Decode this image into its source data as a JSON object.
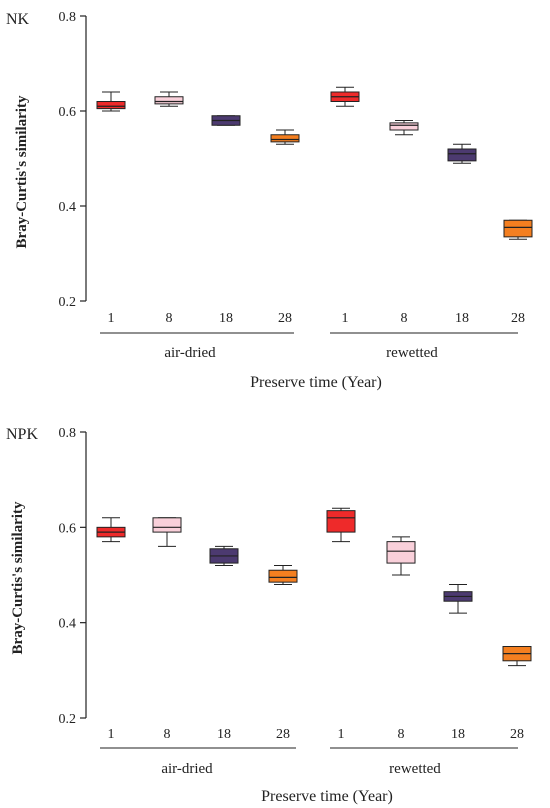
{
  "chart_data": [
    {
      "type": "boxplot",
      "panel_label": "NK",
      "ylabel": "Bray-Curtis's similarity",
      "xlabel": "Preserve time (Year)",
      "ylim": [
        0.2,
        0.8
      ],
      "yticks": [
        "0.2",
        "0.4",
        "0.6",
        "0.8"
      ],
      "categories": [
        "1",
        "8",
        "18",
        "28",
        "1",
        "8",
        "18",
        "28"
      ],
      "groups": [
        "air-dried",
        "rewetted"
      ],
      "colors": [
        "#ee2a2a",
        "#f9d0da",
        "#4c3a70",
        "#f47f20",
        "#ee2a2a",
        "#f9d0da",
        "#4c3a70",
        "#f47f20"
      ],
      "boxes": [
        {
          "min": 0.6,
          "q1": 0.605,
          "median": 0.61,
          "q3": 0.62,
          "max": 0.64
        },
        {
          "min": 0.61,
          "q1": 0.615,
          "median": 0.62,
          "q3": 0.63,
          "max": 0.64
        },
        {
          "min": 0.57,
          "q1": 0.57,
          "median": 0.58,
          "q3": 0.59,
          "max": 0.59
        },
        {
          "min": 0.53,
          "q1": 0.535,
          "median": 0.54,
          "q3": 0.55,
          "max": 0.56
        },
        {
          "min": 0.61,
          "q1": 0.62,
          "median": 0.63,
          "q3": 0.64,
          "max": 0.65
        },
        {
          "min": 0.55,
          "q1": 0.56,
          "median": 0.57,
          "q3": 0.575,
          "max": 0.58
        },
        {
          "min": 0.49,
          "q1": 0.495,
          "median": 0.51,
          "q3": 0.52,
          "max": 0.53
        },
        {
          "min": 0.33,
          "q1": 0.335,
          "median": 0.355,
          "q3": 0.37,
          "max": 0.37
        }
      ]
    },
    {
      "type": "boxplot",
      "panel_label": "NPK",
      "ylabel": "Bray-Curtis's similarity",
      "xlabel": "Preserve time (Year)",
      "ylim": [
        0.2,
        0.8
      ],
      "yticks": [
        "0.2",
        "0.4",
        "0.6",
        "0.8"
      ],
      "categories": [
        "1",
        "8",
        "18",
        "28",
        "1",
        "8",
        "18",
        "28"
      ],
      "groups": [
        "air-dried",
        "rewetted"
      ],
      "colors": [
        "#ee2a2a",
        "#f9d0da",
        "#4c3a70",
        "#f47f20",
        "#ee2a2a",
        "#f9d0da",
        "#4c3a70",
        "#f47f20"
      ],
      "boxes": [
        {
          "min": 0.57,
          "q1": 0.58,
          "median": 0.59,
          "q3": 0.6,
          "max": 0.62
        },
        {
          "min": 0.56,
          "q1": 0.59,
          "median": 0.6,
          "q3": 0.62,
          "max": 0.62
        },
        {
          "min": 0.52,
          "q1": 0.525,
          "median": 0.54,
          "q3": 0.555,
          "max": 0.56
        },
        {
          "min": 0.48,
          "q1": 0.485,
          "median": 0.495,
          "q3": 0.51,
          "max": 0.52
        },
        {
          "min": 0.57,
          "q1": 0.59,
          "median": 0.62,
          "q3": 0.635,
          "max": 0.64
        },
        {
          "min": 0.5,
          "q1": 0.525,
          "median": 0.55,
          "q3": 0.57,
          "max": 0.58
        },
        {
          "min": 0.42,
          "q1": 0.445,
          "median": 0.455,
          "q3": 0.465,
          "max": 0.48
        },
        {
          "min": 0.31,
          "q1": 0.32,
          "median": 0.335,
          "q3": 0.35,
          "max": 0.35
        }
      ]
    }
  ]
}
